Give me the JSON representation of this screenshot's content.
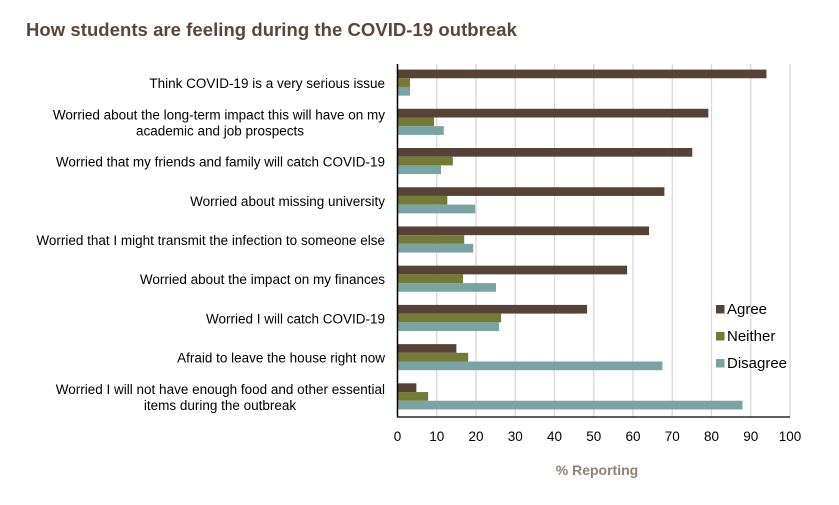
{
  "chart_data": {
    "type": "bar",
    "orientation": "horizontal",
    "title": "How students are feeling during the COVID-19 outbreak",
    "xlabel": "% Reporting",
    "ylabel": "",
    "xlim": [
      0,
      100
    ],
    "xticks": [
      0,
      10,
      20,
      30,
      40,
      50,
      60,
      70,
      80,
      90,
      100
    ],
    "grid": "vertical",
    "legend_position": "right",
    "categories": [
      [
        "Think COVID-19 is a very serious issue"
      ],
      [
        "Worried about the long-term impact this will have on my",
        "academic and job prospects"
      ],
      [
        "Worried that my friends and family will catch COVID-19"
      ],
      [
        "Worried about missing university"
      ],
      [
        "Worried that I might transmit the infection to someone else"
      ],
      [
        "Worried about the impact on my finances"
      ],
      [
        "Worried I will catch COVID-19"
      ],
      [
        "Afraid to leave the house right now"
      ],
      [
        "Worried I will not have enough food and other essential",
        "items during the outbreak"
      ]
    ],
    "series": [
      {
        "name": "Agree",
        "color": "#554337",
        "values": [
          94.0,
          79.2,
          75.1,
          68.0,
          64.1,
          58.5,
          48.3,
          15.0,
          4.8
        ]
      },
      {
        "name": "Neither",
        "color": "#737B36",
        "values": [
          3.2,
          9.3,
          14.1,
          12.7,
          17.0,
          16.7,
          26.4,
          18.0,
          7.8
        ]
      },
      {
        "name": "Disagree",
        "color": "#7AA3A3",
        "values": [
          3.2,
          11.8,
          11.1,
          19.8,
          19.3,
          25.1,
          25.9,
          67.5,
          87.9
        ]
      }
    ]
  },
  "colors": {
    "title": "#5B4638",
    "xlabel": "#8F8275",
    "grid": "#D9D9D9",
    "axis": "#000000"
  }
}
